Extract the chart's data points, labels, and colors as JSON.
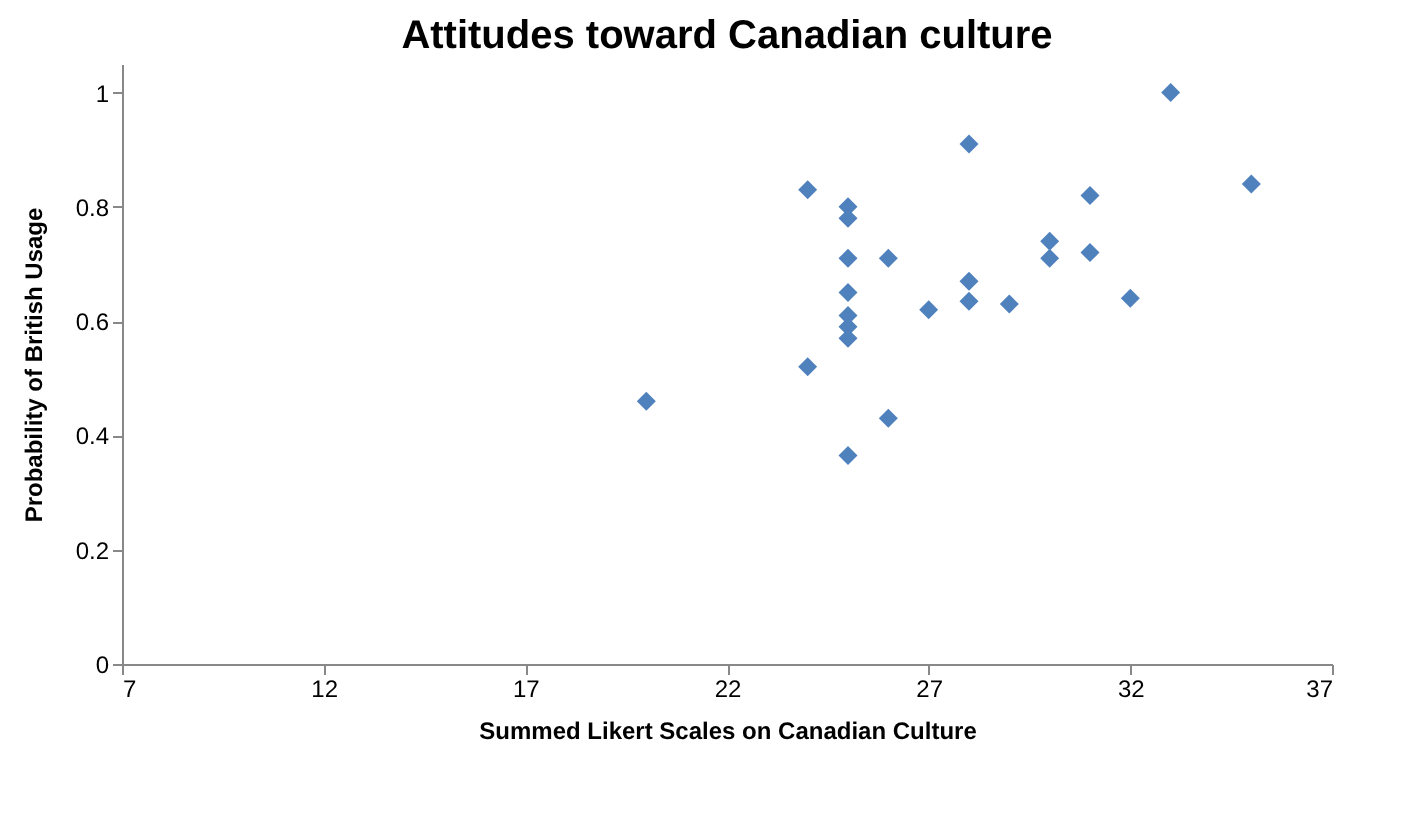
{
  "chart_data": {
    "type": "scatter",
    "title": "Attitudes toward Canadian culture",
    "xlabel": "Summed Likert Scales on Canadian Culture",
    "ylabel": "Probability of British Usage",
    "x": [
      20,
      24,
      24,
      25,
      25,
      25,
      25,
      25,
      25,
      25,
      25,
      26,
      26,
      27,
      28,
      28,
      28,
      29,
      30,
      30,
      31,
      31,
      32,
      33,
      35
    ],
    "series": [
      {
        "color": "#4f81bd",
        "values": [
          0.46,
          0.83,
          0.52,
          0.8,
          0.78,
          0.71,
          0.65,
          0.61,
          0.59,
          0.57,
          0.365,
          0.71,
          0.43,
          0.62,
          0.91,
          0.67,
          0.635,
          0.63,
          0.74,
          0.71,
          0.82,
          0.72,
          0.64,
          1.0,
          0.84
        ]
      }
    ],
    "xlim": [
      7,
      37
    ],
    "xticks": [
      7,
      12,
      17,
      22,
      27,
      32,
      37
    ],
    "ylim": [
      0,
      1.05
    ],
    "yticks": [
      0,
      0.2,
      0.4,
      0.6,
      0.8,
      1
    ],
    "marker": "diamond",
    "grid": false
  }
}
